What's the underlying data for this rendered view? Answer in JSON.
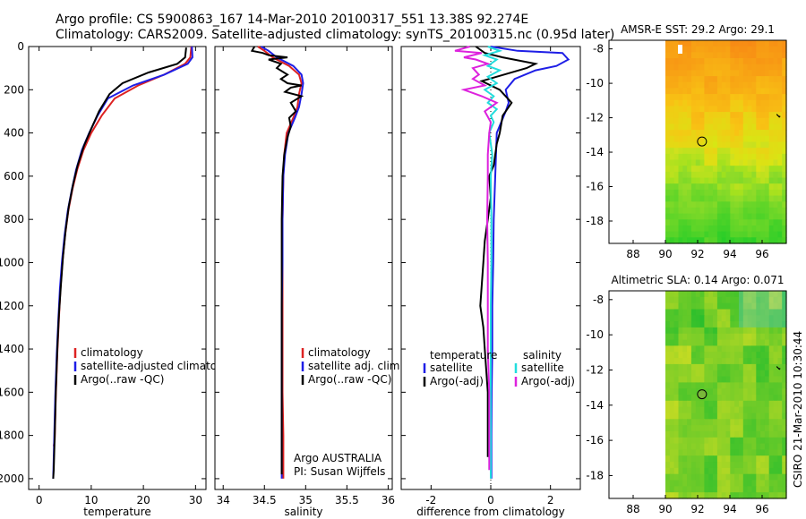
{
  "title_line1": "Argo profile: CS 5900863_167 14-Mar-2010 20100317_551 13.38S 92.274E",
  "title_line2": "Climatology: CARS2009. Satellite-adjusted climatology: synTS_20100315.nc (0.95d later)",
  "credit": "CSIRO 21-Mar-2010 10:30:44",
  "colors": {
    "red": "#dd2222",
    "blue": "#1e1ee6",
    "black": "#000000",
    "cyan": "#22dddd",
    "magenta": "#dd22dd"
  },
  "chart_data": [
    {
      "type": "line",
      "id": "temperature",
      "xlabel": "temperature",
      "ylabel": "",
      "xlim": [
        -2,
        32
      ],
      "ylim": [
        2050,
        0
      ],
      "xticks": [
        0,
        10,
        20,
        30
      ],
      "yticks": [
        0,
        200,
        400,
        600,
        800,
        1000,
        1200,
        1400,
        1600,
        1800,
        2000
      ],
      "legend": [
        "climatology",
        "satellite-adjusted climatology",
        "Argo(..raw -QC)"
      ],
      "series": [
        {
          "name": "climatology",
          "color": "red",
          "points": [
            [
              29.2,
              0
            ],
            [
              29,
              50
            ],
            [
              28,
              80
            ],
            [
              24,
              130
            ],
            [
              19,
              180
            ],
            [
              14.5,
              240
            ],
            [
              12,
              320
            ],
            [
              10,
              400
            ],
            [
              8.5,
              480
            ],
            [
              7.3,
              570
            ],
            [
              6.4,
              660
            ],
            [
              5.6,
              760
            ],
            [
              5,
              870
            ],
            [
              4.5,
              990
            ],
            [
              4.1,
              1120
            ],
            [
              3.8,
              1260
            ],
            [
              3.5,
              1420
            ],
            [
              3.2,
              1620
            ],
            [
              3,
              1820
            ],
            [
              2.8,
              1850
            ]
          ]
        },
        {
          "name": "satellite-adjusted climatology",
          "color": "blue",
          "points": [
            [
              29.3,
              0
            ],
            [
              29.4,
              50
            ],
            [
              28.5,
              80
            ],
            [
              24,
              130
            ],
            [
              18,
              180
            ],
            [
              13.2,
              240
            ],
            [
              11.2,
              320
            ],
            [
              9.6,
              400
            ],
            [
              8.2,
              480
            ],
            [
              7.1,
              570
            ],
            [
              6.3,
              660
            ],
            [
              5.5,
              760
            ],
            [
              4.9,
              870
            ],
            [
              4.4,
              990
            ],
            [
              4,
              1120
            ],
            [
              3.7,
              1260
            ],
            [
              3.4,
              1420
            ],
            [
              3.1,
              1620
            ],
            [
              2.9,
              1820
            ],
            [
              2.7,
              2000
            ]
          ]
        },
        {
          "name": "Argo(..raw -QC)",
          "color": "black",
          "points": [
            [
              28.2,
              5
            ],
            [
              28,
              50
            ],
            [
              26.5,
              80
            ],
            [
              21,
              120
            ],
            [
              16,
              170
            ],
            [
              13.5,
              220
            ],
            [
              11.5,
              300
            ],
            [
              10,
              380
            ],
            [
              8.6,
              460
            ],
            [
              7.4,
              550
            ],
            [
              6.5,
              640
            ],
            [
              5.7,
              740
            ],
            [
              5.1,
              850
            ],
            [
              4.6,
              970
            ],
            [
              4.2,
              1100
            ],
            [
              3.8,
              1240
            ],
            [
              3.5,
              1400
            ],
            [
              3.2,
              1600
            ],
            [
              3,
              1800
            ],
            [
              2.8,
              1960
            ],
            [
              2.7,
              2000
            ]
          ]
        }
      ]
    },
    {
      "type": "line",
      "id": "salinity",
      "xlabel": "salinity",
      "xlim": [
        33.9,
        36.05
      ],
      "ylim": [
        2050,
        0
      ],
      "xticks": [
        34,
        34.5,
        35,
        35.5,
        36
      ],
      "legend": [
        "climatology",
        "satellite adj. clim.",
        "Argo(..raw -QC)"
      ],
      "annotation": [
        "Argo AUSTRALIA",
        "PI: Susan Wijffels"
      ],
      "series": [
        {
          "name": "climatology",
          "color": "red",
          "points": [
            [
              34.42,
              0
            ],
            [
              34.5,
              20
            ],
            [
              34.6,
              50
            ],
            [
              34.8,
              90
            ],
            [
              34.92,
              130
            ],
            [
              34.95,
              170
            ],
            [
              34.92,
              220
            ],
            [
              34.9,
              280
            ],
            [
              34.85,
              330
            ],
            [
              34.77,
              400
            ],
            [
              34.74,
              500
            ],
            [
              34.73,
              600
            ],
            [
              34.72,
              800
            ],
            [
              34.72,
              1000
            ],
            [
              34.72,
              1200
            ],
            [
              34.72,
              1400
            ],
            [
              34.72,
              1600
            ],
            [
              34.73,
              1800
            ],
            [
              34.73,
              2000
            ]
          ]
        },
        {
          "name": "satellite adj. clim.",
          "color": "blue",
          "points": [
            [
              34.46,
              0
            ],
            [
              34.55,
              20
            ],
            [
              34.65,
              50
            ],
            [
              34.85,
              90
            ],
            [
              34.95,
              130
            ],
            [
              34.97,
              170
            ],
            [
              34.95,
              220
            ],
            [
              34.92,
              280
            ],
            [
              34.87,
              330
            ],
            [
              34.79,
              400
            ],
            [
              34.75,
              500
            ],
            [
              34.73,
              600
            ],
            [
              34.72,
              800
            ],
            [
              34.72,
              1000
            ],
            [
              34.71,
              1200
            ],
            [
              34.71,
              1400
            ],
            [
              34.71,
              1600
            ],
            [
              34.71,
              1800
            ],
            [
              34.71,
              2000
            ]
          ]
        },
        {
          "name": "Argo(..raw -QC)",
          "color": "black",
          "points": [
            [
              34.38,
              0
            ],
            [
              34.35,
              20
            ],
            [
              34.48,
              30
            ],
            [
              34.55,
              40
            ],
            [
              34.78,
              50
            ],
            [
              34.55,
              60
            ],
            [
              34.7,
              80
            ],
            [
              34.65,
              100
            ],
            [
              34.78,
              130
            ],
            [
              34.7,
              150
            ],
            [
              34.78,
              170
            ],
            [
              34.95,
              180
            ],
            [
              34.82,
              190
            ],
            [
              34.75,
              210
            ],
            [
              34.95,
              230
            ],
            [
              34.82,
              260
            ],
            [
              34.88,
              300
            ],
            [
              34.8,
              330
            ],
            [
              34.82,
              370
            ],
            [
              34.78,
              420
            ],
            [
              34.74,
              500
            ],
            [
              34.72,
              600
            ],
            [
              34.71,
              800
            ],
            [
              34.71,
              1000
            ],
            [
              34.71,
              1200
            ],
            [
              34.71,
              1400
            ],
            [
              34.71,
              1600
            ],
            [
              34.71,
              1800
            ],
            [
              34.71,
              1980
            ]
          ]
        }
      ]
    },
    {
      "type": "line",
      "id": "difference",
      "xlabel": "difference from climatology",
      "xlim": [
        -3,
        3
      ],
      "ylim": [
        2050,
        0
      ],
      "xticks": [
        -2,
        0,
        2
      ],
      "legend_left_header": "temperature",
      "legend_right_header": "salinity",
      "legend_left": [
        "satellite",
        "Argo(-adj)"
      ],
      "legend_right": [
        "satellite",
        "Argo(-adj)"
      ],
      "series": [
        {
          "name": "temperature satellite",
          "color": "blue",
          "points": [
            [
              0,
              0
            ],
            [
              0.9,
              20
            ],
            [
              2.4,
              30
            ],
            [
              2.6,
              60
            ],
            [
              2.2,
              90
            ],
            [
              1.5,
              110
            ],
            [
              0.8,
              150
            ],
            [
              0.5,
              200
            ],
            [
              0.6,
              260
            ],
            [
              0.5,
              300
            ],
            [
              0.2,
              400
            ],
            [
              0.15,
              600
            ],
            [
              0.1,
              800
            ],
            [
              0.08,
              1000
            ],
            [
              0.05,
              1200
            ],
            [
              0.05,
              1400
            ],
            [
              0.03,
              1600
            ],
            [
              0.02,
              1800
            ],
            [
              0.02,
              2000
            ]
          ]
        },
        {
          "name": "temperature Argo(-adj)",
          "color": "black",
          "points": [
            [
              -0.5,
              0
            ],
            [
              -0.2,
              30
            ],
            [
              0.4,
              50
            ],
            [
              1.5,
              80
            ],
            [
              1.2,
              100
            ],
            [
              -0.3,
              160
            ],
            [
              0.3,
              200
            ],
            [
              0.7,
              260
            ],
            [
              0.4,
              320
            ],
            [
              0.3,
              400
            ],
            [
              0.2,
              450
            ],
            [
              0.1,
              550
            ],
            [
              -0.05,
              600
            ],
            [
              0,
              700
            ],
            [
              -0.1,
              800
            ],
            [
              -0.2,
              900
            ],
            [
              -0.25,
              1000
            ],
            [
              -0.3,
              1100
            ],
            [
              -0.35,
              1200
            ],
            [
              -0.25,
              1300
            ],
            [
              -0.2,
              1400
            ],
            [
              -0.15,
              1500
            ],
            [
              -0.1,
              1600
            ],
            [
              -0.1,
              1700
            ],
            [
              -0.1,
              1800
            ],
            [
              -0.1,
              1900
            ]
          ]
        },
        {
          "name": "salinity satellite",
          "color": "cyan",
          "points": [
            [
              -0.1,
              0
            ],
            [
              0.3,
              20
            ],
            [
              -0.2,
              40
            ],
            [
              0.2,
              60
            ],
            [
              -0.1,
              90
            ],
            [
              0.3,
              110
            ],
            [
              -0.1,
              140
            ],
            [
              0.2,
              170
            ],
            [
              -0.2,
              200
            ],
            [
              0.1,
              230
            ],
            [
              -0.1,
              260
            ],
            [
              0.2,
              290
            ],
            [
              0,
              320
            ],
            [
              0.1,
              350
            ],
            [
              -0.05,
              400
            ],
            [
              0.05,
              500
            ],
            [
              0,
              600
            ],
            [
              0.02,
              800
            ],
            [
              0.02,
              1000
            ],
            [
              0,
              1200
            ],
            [
              0,
              1400
            ],
            [
              0,
              1600
            ],
            [
              0,
              1800
            ],
            [
              0,
              2000
            ]
          ]
        },
        {
          "name": "salinity Argo(-adj)",
          "color": "magenta",
          "points": [
            [
              -0.7,
              0
            ],
            [
              -1.2,
              20
            ],
            [
              -0.3,
              30
            ],
            [
              -0.9,
              50
            ],
            [
              -0.5,
              60
            ],
            [
              -0.1,
              80
            ],
            [
              -0.6,
              100
            ],
            [
              -0.4,
              130
            ],
            [
              -0.6,
              150
            ],
            [
              -0.2,
              180
            ],
            [
              -0.9,
              200
            ],
            [
              -0.3,
              230
            ],
            [
              0.2,
              260
            ],
            [
              -0.2,
              300
            ],
            [
              0,
              350
            ],
            [
              -0.05,
              400
            ],
            [
              -0.1,
              500
            ],
            [
              -0.1,
              600
            ],
            [
              -0.12,
              800
            ],
            [
              -0.1,
              1000
            ],
            [
              -0.1,
              1200
            ],
            [
              -0.1,
              1400
            ],
            [
              -0.05,
              1600
            ],
            [
              -0.05,
              1800
            ],
            [
              -0.05,
              1960
            ]
          ]
        }
      ]
    },
    {
      "type": "heatmap",
      "id": "sst_map",
      "title": "AMSR-E SST: 29.2 Argo: 29.1",
      "xlim": [
        86.5,
        97.5
      ],
      "ylim": [
        -19.3,
        -7.5
      ],
      "xticks": [
        88,
        90,
        92,
        94,
        96
      ],
      "yticks": [
        -8,
        -10,
        -12,
        -14,
        -16,
        -18
      ],
      "land_edge_lon": 90,
      "float_position": [
        92.27,
        -13.38
      ]
    },
    {
      "type": "heatmap",
      "id": "sla_map",
      "title": "Altimetric SLA: 0.14 Argo: 0.071",
      "xlim": [
        86.5,
        97.5
      ],
      "ylim": [
        -19.3,
        -7.5
      ],
      "xticks": [
        88,
        90,
        92,
        94,
        96
      ],
      "yticks": [
        -8,
        -10,
        -12,
        -14,
        -16,
        -18
      ],
      "land_edge_lon": 90,
      "float_position": [
        92.27,
        -13.38
      ]
    }
  ]
}
